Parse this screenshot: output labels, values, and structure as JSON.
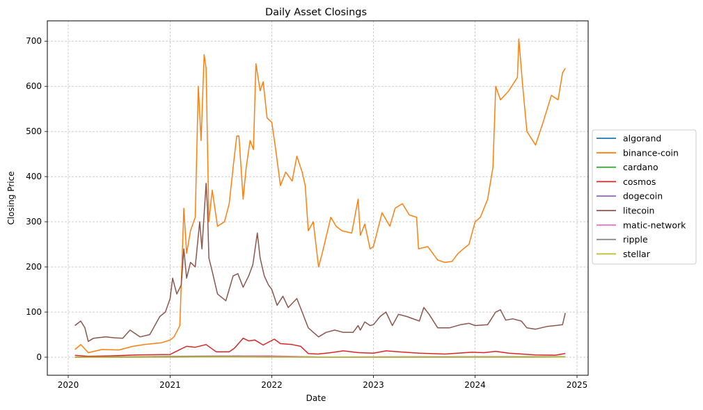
{
  "chart_data": {
    "type": "line",
    "title": "Daily Asset Closings",
    "xlabel": "Date",
    "ylabel": "Closing Price",
    "grid": true,
    "legend_position": "right-outside",
    "x_range": [
      "2019-10-18",
      "2025-02-10"
    ],
    "ylim": [
      -40,
      745
    ],
    "x_ticks": [
      "2020-01-01",
      "2021-01-01",
      "2022-01-01",
      "2023-01-01",
      "2024-01-01",
      "2025-01-01"
    ],
    "x_tick_labels": [
      "2020",
      "2021",
      "2022",
      "2023",
      "2024",
      "2025"
    ],
    "y_ticks": [
      0,
      100,
      200,
      300,
      400,
      500,
      600,
      700
    ],
    "y_tick_labels": [
      "0",
      "100",
      "200",
      "300",
      "400",
      "500",
      "600",
      "700"
    ],
    "series": [
      {
        "name": "algorand",
        "color": "#1f77b4",
        "points": [
          [
            "2020-01-25",
            0.22
          ],
          [
            "2020-07-01",
            0.28
          ],
          [
            "2021-03-01",
            1.2
          ],
          [
            "2021-09-10",
            2.0
          ],
          [
            "2022-01-01",
            1.5
          ],
          [
            "2022-06-15",
            0.35
          ],
          [
            "2023-01-01",
            0.18
          ],
          [
            "2024-01-01",
            0.2
          ],
          [
            "2024-11-20",
            0.3
          ]
        ]
      },
      {
        "name": "binance-coin",
        "color": "#ff7f0e",
        "points": [
          [
            "2020-01-25",
            17
          ],
          [
            "2020-02-15",
            28
          ],
          [
            "2020-03-13",
            10
          ],
          [
            "2020-05-01",
            17
          ],
          [
            "2020-07-01",
            16
          ],
          [
            "2020-08-20",
            24
          ],
          [
            "2020-10-01",
            28
          ],
          [
            "2020-12-01",
            32
          ],
          [
            "2021-01-01",
            38
          ],
          [
            "2021-01-15",
            45
          ],
          [
            "2021-02-05",
            70
          ],
          [
            "2021-02-19",
            330
          ],
          [
            "2021-03-01",
            230
          ],
          [
            "2021-03-15",
            280
          ],
          [
            "2021-04-01",
            310
          ],
          [
            "2021-04-12",
            600
          ],
          [
            "2021-04-22",
            480
          ],
          [
            "2021-05-03",
            670
          ],
          [
            "2021-05-10",
            640
          ],
          [
            "2021-05-20",
            300
          ],
          [
            "2021-06-01",
            370
          ],
          [
            "2021-06-20",
            290
          ],
          [
            "2021-07-15",
            300
          ],
          [
            "2021-08-01",
            340
          ],
          [
            "2021-08-15",
            420
          ],
          [
            "2021-08-28",
            490
          ],
          [
            "2021-09-05",
            490
          ],
          [
            "2021-09-20",
            350
          ],
          [
            "2021-10-01",
            420
          ],
          [
            "2021-10-15",
            480
          ],
          [
            "2021-10-27",
            460
          ],
          [
            "2021-11-05",
            650
          ],
          [
            "2021-11-20",
            590
          ],
          [
            "2021-12-01",
            610
          ],
          [
            "2021-12-15",
            530
          ],
          [
            "2022-01-01",
            520
          ],
          [
            "2022-01-15",
            460
          ],
          [
            "2022-02-01",
            380
          ],
          [
            "2022-02-20",
            410
          ],
          [
            "2022-03-15",
            390
          ],
          [
            "2022-04-01",
            445
          ],
          [
            "2022-04-20",
            410
          ],
          [
            "2022-05-01",
            380
          ],
          [
            "2022-05-12",
            280
          ],
          [
            "2022-05-30",
            300
          ],
          [
            "2022-06-15",
            215
          ],
          [
            "2022-06-18",
            200
          ],
          [
            "2022-07-01",
            230
          ],
          [
            "2022-08-01",
            310
          ],
          [
            "2022-08-20",
            290
          ],
          [
            "2022-09-10",
            280
          ],
          [
            "2022-10-15",
            275
          ],
          [
            "2022-11-07",
            350
          ],
          [
            "2022-11-15",
            270
          ],
          [
            "2022-12-01",
            295
          ],
          [
            "2022-12-20",
            240
          ],
          [
            "2023-01-01",
            245
          ],
          [
            "2023-02-01",
            320
          ],
          [
            "2023-03-01",
            290
          ],
          [
            "2023-03-20",
            330
          ],
          [
            "2023-04-15",
            340
          ],
          [
            "2023-05-10",
            315
          ],
          [
            "2023-06-05",
            310
          ],
          [
            "2023-06-12",
            240
          ],
          [
            "2023-07-15",
            245
          ],
          [
            "2023-08-20",
            215
          ],
          [
            "2023-09-15",
            210
          ],
          [
            "2023-10-10",
            212
          ],
          [
            "2023-11-01",
            230
          ],
          [
            "2023-11-20",
            240
          ],
          [
            "2023-12-10",
            250
          ],
          [
            "2024-01-01",
            300
          ],
          [
            "2024-01-20",
            310
          ],
          [
            "2024-02-15",
            350
          ],
          [
            "2024-03-05",
            420
          ],
          [
            "2024-03-15",
            600
          ],
          [
            "2024-04-01",
            570
          ],
          [
            "2024-05-01",
            590
          ],
          [
            "2024-06-01",
            620
          ],
          [
            "2024-06-06",
            705
          ],
          [
            "2024-06-20",
            600
          ],
          [
            "2024-07-05",
            500
          ],
          [
            "2024-08-05",
            470
          ],
          [
            "2024-09-01",
            520
          ],
          [
            "2024-10-01",
            580
          ],
          [
            "2024-10-25",
            570
          ],
          [
            "2024-11-10",
            630
          ],
          [
            "2024-11-20",
            640
          ]
        ]
      },
      {
        "name": "cardano",
        "color": "#2ca02c",
        "points": [
          [
            "2020-01-25",
            0.05
          ],
          [
            "2020-09-01",
            0.1
          ],
          [
            "2021-02-15",
            0.9
          ],
          [
            "2021-05-15",
            1.8
          ],
          [
            "2021-09-01",
            2.9
          ],
          [
            "2022-01-01",
            1.4
          ],
          [
            "2022-06-15",
            0.5
          ],
          [
            "2023-01-01",
            0.27
          ],
          [
            "2024-01-01",
            0.6
          ],
          [
            "2024-11-20",
            0.8
          ]
        ]
      },
      {
        "name": "cosmos",
        "color": "#d62728",
        "points": [
          [
            "2020-01-25",
            4
          ],
          [
            "2020-03-13",
            2
          ],
          [
            "2020-06-01",
            3
          ],
          [
            "2020-09-01",
            5
          ],
          [
            "2021-01-01",
            6
          ],
          [
            "2021-02-15",
            20
          ],
          [
            "2021-03-01",
            24
          ],
          [
            "2021-04-01",
            22
          ],
          [
            "2021-05-10",
            28
          ],
          [
            "2021-06-15",
            12
          ],
          [
            "2021-08-01",
            12
          ],
          [
            "2021-08-20",
            20
          ],
          [
            "2021-09-20",
            42
          ],
          [
            "2021-10-10",
            36
          ],
          [
            "2021-11-01",
            38
          ],
          [
            "2021-12-01",
            27
          ],
          [
            "2022-01-10",
            40
          ],
          [
            "2022-02-01",
            30
          ],
          [
            "2022-03-15",
            28
          ],
          [
            "2022-04-15",
            24
          ],
          [
            "2022-05-12",
            8
          ],
          [
            "2022-06-15",
            7
          ],
          [
            "2022-08-01",
            10
          ],
          [
            "2022-09-15",
            14
          ],
          [
            "2022-11-10",
            10
          ],
          [
            "2023-01-01",
            9
          ],
          [
            "2023-02-15",
            14
          ],
          [
            "2023-04-01",
            12
          ],
          [
            "2023-06-15",
            9
          ],
          [
            "2023-09-15",
            7
          ],
          [
            "2023-12-20",
            11
          ],
          [
            "2024-02-01",
            10
          ],
          [
            "2024-03-15",
            13
          ],
          [
            "2024-05-01",
            9
          ],
          [
            "2024-08-05",
            5
          ],
          [
            "2024-10-15",
            4.5
          ],
          [
            "2024-11-20",
            8
          ]
        ]
      },
      {
        "name": "dogecoin",
        "color": "#9467bd",
        "points": [
          [
            "2020-01-25",
            0.002
          ],
          [
            "2021-01-28",
            0.04
          ],
          [
            "2021-05-08",
            0.6
          ],
          [
            "2021-09-01",
            0.28
          ],
          [
            "2022-06-15",
            0.06
          ],
          [
            "2023-06-01",
            0.07
          ],
          [
            "2024-03-28",
            0.2
          ],
          [
            "2024-11-20",
            0.38
          ]
        ]
      },
      {
        "name": "litecoin",
        "color": "#8c564b",
        "points": [
          [
            "2020-01-25",
            70
          ],
          [
            "2020-02-15",
            80
          ],
          [
            "2020-03-01",
            65
          ],
          [
            "2020-03-13",
            35
          ],
          [
            "2020-04-01",
            42
          ],
          [
            "2020-05-15",
            45
          ],
          [
            "2020-06-15",
            43
          ],
          [
            "2020-07-15",
            42
          ],
          [
            "2020-08-10",
            60
          ],
          [
            "2020-09-15",
            45
          ],
          [
            "2020-10-20",
            50
          ],
          [
            "2020-11-25",
            90
          ],
          [
            "2020-12-15",
            100
          ],
          [
            "2021-01-01",
            130
          ],
          [
            "2021-01-10",
            175
          ],
          [
            "2021-01-25",
            140
          ],
          [
            "2021-02-10",
            160
          ],
          [
            "2021-02-19",
            240
          ],
          [
            "2021-03-01",
            175
          ],
          [
            "2021-03-15",
            210
          ],
          [
            "2021-04-01",
            200
          ],
          [
            "2021-04-17",
            300
          ],
          [
            "2021-04-25",
            240
          ],
          [
            "2021-05-10",
            385
          ],
          [
            "2021-05-15",
            330
          ],
          [
            "2021-05-20",
            220
          ],
          [
            "2021-06-01",
            190
          ],
          [
            "2021-06-20",
            140
          ],
          [
            "2021-07-20",
            125
          ],
          [
            "2021-08-15",
            180
          ],
          [
            "2021-09-01",
            185
          ],
          [
            "2021-09-20",
            155
          ],
          [
            "2021-10-10",
            180
          ],
          [
            "2021-10-25",
            205
          ],
          [
            "2021-11-10",
            275
          ],
          [
            "2021-11-20",
            220
          ],
          [
            "2021-12-05",
            180
          ],
          [
            "2021-12-20",
            160
          ],
          [
            "2022-01-01",
            150
          ],
          [
            "2022-01-20",
            115
          ],
          [
            "2022-02-10",
            135
          ],
          [
            "2022-03-01",
            110
          ],
          [
            "2022-04-01",
            130
          ],
          [
            "2022-04-20",
            100
          ],
          [
            "2022-05-12",
            65
          ],
          [
            "2022-06-18",
            45
          ],
          [
            "2022-07-15",
            55
          ],
          [
            "2022-08-15",
            60
          ],
          [
            "2022-09-15",
            55
          ],
          [
            "2022-10-20",
            55
          ],
          [
            "2022-11-07",
            70
          ],
          [
            "2022-11-15",
            60
          ],
          [
            "2022-12-01",
            78
          ],
          [
            "2022-12-20",
            70
          ],
          [
            "2023-01-01",
            72
          ],
          [
            "2023-01-25",
            90
          ],
          [
            "2023-02-15",
            100
          ],
          [
            "2023-03-10",
            70
          ],
          [
            "2023-04-01",
            95
          ],
          [
            "2023-05-01",
            90
          ],
          [
            "2023-06-15",
            80
          ],
          [
            "2023-07-01",
            110
          ],
          [
            "2023-07-20",
            95
          ],
          [
            "2023-08-20",
            65
          ],
          [
            "2023-10-01",
            65
          ],
          [
            "2023-11-10",
            72
          ],
          [
            "2023-12-10",
            75
          ],
          [
            "2024-01-01",
            70
          ],
          [
            "2024-02-15",
            72
          ],
          [
            "2024-03-15",
            100
          ],
          [
            "2024-04-01",
            105
          ],
          [
            "2024-04-20",
            82
          ],
          [
            "2024-05-15",
            85
          ],
          [
            "2024-06-15",
            80
          ],
          [
            "2024-07-05",
            65
          ],
          [
            "2024-08-05",
            62
          ],
          [
            "2024-09-15",
            68
          ],
          [
            "2024-10-15",
            70
          ],
          [
            "2024-11-10",
            72
          ],
          [
            "2024-11-20",
            98
          ]
        ]
      },
      {
        "name": "matic-network",
        "color": "#e377c2",
        "points": [
          [
            "2020-01-25",
            0.02
          ],
          [
            "2021-05-18",
            2.5
          ],
          [
            "2021-12-27",
            2.9
          ],
          [
            "2022-06-18",
            0.4
          ],
          [
            "2023-01-01",
            0.8
          ],
          [
            "2024-03-15",
            1.2
          ],
          [
            "2024-11-20",
            0.45
          ]
        ]
      },
      {
        "name": "ripple",
        "color": "#7f7f7f",
        "points": [
          [
            "2020-01-25",
            0.22
          ],
          [
            "2021-04-14",
            1.8
          ],
          [
            "2021-09-06",
            1.35
          ],
          [
            "2022-06-18",
            0.33
          ],
          [
            "2023-07-13",
            0.82
          ],
          [
            "2024-11-20",
            1.1
          ]
        ]
      },
      {
        "name": "stellar",
        "color": "#bcbd22",
        "points": [
          [
            "2020-01-25",
            0.06
          ],
          [
            "2021-05-15",
            0.7
          ],
          [
            "2021-11-01",
            0.4
          ],
          [
            "2022-06-18",
            0.1
          ],
          [
            "2024-01-01",
            0.12
          ],
          [
            "2024-11-20",
            0.3
          ]
        ]
      }
    ]
  }
}
